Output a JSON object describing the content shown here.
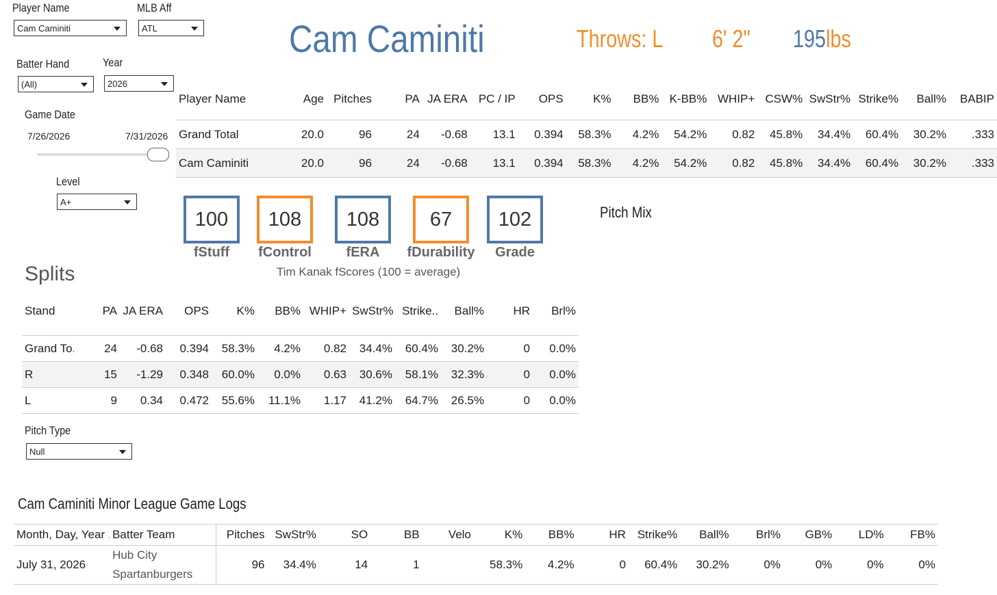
{
  "filters": {
    "player_name": {
      "label": "Player Name",
      "value": "Cam Caminiti"
    },
    "mlb_aff": {
      "label": "MLB Aff",
      "value": "ATL"
    },
    "batter_hand": {
      "label": "Batter Hand",
      "value": "(All)"
    },
    "year": {
      "label": "Year",
      "value": "2026"
    },
    "game_date": {
      "label": "Game Date",
      "start": "7/26/2026",
      "end": "7/31/2026"
    },
    "level": {
      "label": "Level",
      "value": "A+"
    },
    "pitch_type": {
      "label": "Pitch Type",
      "value": "Null"
    }
  },
  "header": {
    "name": "Cam Caminiti",
    "throws": "Throws: L",
    "height": "6' 2\"",
    "weight_number": "195",
    "weight_unit": "lbs"
  },
  "summary_table": {
    "columns": [
      "Player Name",
      "Age",
      "Pitches",
      "PA",
      "JA ERA",
      "PC / IP",
      "OPS",
      "K%",
      "BB%",
      "K-BB%",
      "WHIP+",
      "CSW%",
      "SwStr%",
      "Strike%",
      "Ball%",
      "BABIP"
    ],
    "rows": [
      [
        "Grand Total",
        "20.0",
        "96",
        "24",
        "-0.68",
        "13.1",
        "0.394",
        "58.3%",
        "4.2%",
        "54.2%",
        "0.82",
        "45.8%",
        "34.4%",
        "60.4%",
        "30.2%",
        ".333"
      ],
      [
        "Cam Caminiti",
        "20.0",
        "96",
        "24",
        "-0.68",
        "13.1",
        "0.394",
        "58.3%",
        "4.2%",
        "54.2%",
        "0.82",
        "45.8%",
        "34.4%",
        "60.4%",
        "30.2%",
        ".333"
      ]
    ]
  },
  "fscores": {
    "items": [
      {
        "value": "100",
        "label": "fStuff",
        "color": "#4e79a7"
      },
      {
        "value": "108",
        "label": "fControl",
        "color": "#f28e2b"
      },
      {
        "value": "108",
        "label": "fERA",
        "color": "#4e79a7"
      },
      {
        "value": "67",
        "label": "fDurability",
        "color": "#f28e2b"
      },
      {
        "value": "102",
        "label": "Grade",
        "color": "#4e79a7"
      }
    ],
    "caption": "Tim Kanak fScores (100 = average)"
  },
  "pitch_mix": {
    "title": "Pitch Mix"
  },
  "splits": {
    "title": "Splits",
    "columns": [
      "Stand",
      "PA",
      "JA ERA",
      "OPS",
      "K%",
      "BB%",
      "WHIP+",
      "SwStr%",
      "Strike..",
      "Ball%",
      "HR",
      "Brl%"
    ],
    "rows": [
      [
        "Grand To..",
        "24",
        "-0.68",
        "0.394",
        "58.3%",
        "4.2%",
        "0.82",
        "34.4%",
        "60.4%",
        "30.2%",
        "0",
        "0.0%"
      ],
      [
        "R",
        "15",
        "-1.29",
        "0.348",
        "60.0%",
        "0.0%",
        "0.63",
        "30.6%",
        "58.1%",
        "32.3%",
        "0",
        "0.0%"
      ],
      [
        "L",
        "9",
        "0.34",
        "0.472",
        "55.6%",
        "11.1%",
        "1.17",
        "41.2%",
        "64.7%",
        "26.5%",
        "0",
        "0.0%"
      ]
    ]
  },
  "game_logs": {
    "title": "Cam Caminiti Minor League Game Logs",
    "columns": [
      "Month, Day, Year ..",
      "Batter Team",
      "Pitches",
      "SwStr%",
      "SO",
      "BB",
      "Velo",
      "K%",
      "BB%",
      "HR",
      "Strike%",
      "Ball%",
      "Brl%",
      "GB%",
      "LD%",
      "FB%"
    ],
    "rows": [
      [
        "July 31, 2026",
        "Hub City Spartanburgers",
        "96",
        "34.4%",
        "14",
        "1",
        null,
        "58.3%",
        "4.2%",
        "0",
        "60.4%",
        "30.2%",
        "0%",
        "0%",
        "0%",
        "0%"
      ]
    ]
  }
}
